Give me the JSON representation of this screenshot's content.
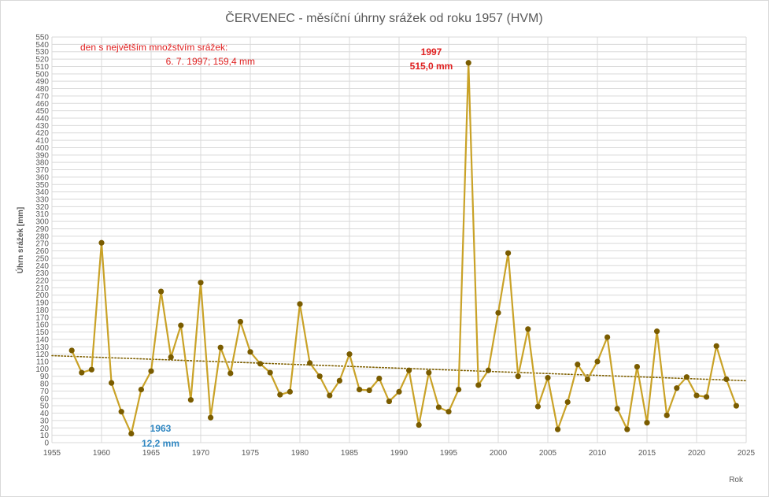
{
  "chart_data": {
    "type": "line",
    "title": "ČERVENEC - měsíční úhrny srážek od roku 1957 (HVM)",
    "xlabel": "Rok",
    "ylabel": "Úhrn srážek [mm]",
    "xlim": [
      1955,
      2025
    ],
    "ylim": [
      0,
      550
    ],
    "x_ticks": [
      1955,
      1960,
      1965,
      1970,
      1975,
      1980,
      1985,
      1990,
      1995,
      2000,
      2005,
      2010,
      2015,
      2020,
      2025
    ],
    "y_tick_step": 10,
    "grid": true,
    "series": [
      {
        "color": "#c9a227",
        "marker_color": "#7a5c00",
        "x": [
          1957,
          1958,
          1959,
          1960,
          1961,
          1962,
          1963,
          1964,
          1965,
          1966,
          1967,
          1968,
          1969,
          1970,
          1971,
          1972,
          1973,
          1974,
          1975,
          1976,
          1977,
          1978,
          1979,
          1980,
          1981,
          1982,
          1983,
          1984,
          1985,
          1986,
          1987,
          1988,
          1989,
          1990,
          1991,
          1992,
          1993,
          1994,
          1995,
          1996,
          1997,
          1998,
          1999,
          2000,
          2001,
          2002,
          2003,
          2004,
          2005,
          2006,
          2007,
          2008,
          2009,
          2010,
          2011,
          2012,
          2013,
          2014,
          2015,
          2016,
          2017,
          2018,
          2019,
          2020,
          2021,
          2022,
          2023,
          2024
        ],
        "y": [
          125,
          95,
          99,
          271,
          81,
          42,
          12.2,
          72,
          97,
          205,
          116,
          159,
          58,
          217,
          34,
          129,
          94,
          164,
          123,
          107,
          95,
          65,
          69,
          188,
          108,
          90,
          64,
          84,
          120,
          72,
          71,
          87,
          56,
          69,
          98,
          24,
          95,
          48,
          42,
          72,
          515,
          78,
          98,
          176,
          257,
          90,
          154,
          49,
          88,
          18,
          55,
          106,
          86,
          110,
          143,
          46,
          18,
          103,
          27,
          151,
          37,
          74,
          89,
          64,
          62,
          131,
          86,
          50
        ]
      }
    ],
    "trendline": {
      "style": "dotted",
      "color": "#7f6000",
      "start": [
        1955,
        118
      ],
      "end": [
        2025,
        84
      ]
    },
    "annotations": {
      "max_day_line1": "den s největším množstvím srážek:",
      "max_day_line2": "6. 7. 1997; 159,4 mm",
      "max_year": "1997",
      "max_value": "515,0 mm",
      "min_year": "1963",
      "min_value": "12,2 mm"
    }
  }
}
